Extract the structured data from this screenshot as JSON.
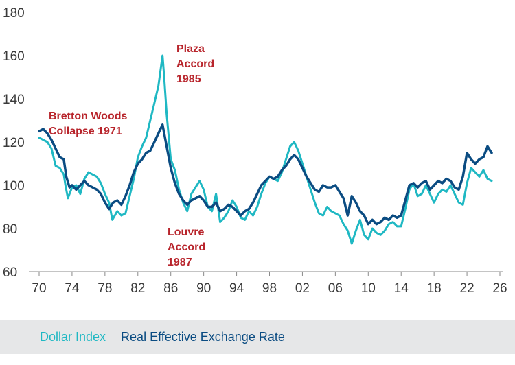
{
  "chart_data": {
    "type": "line",
    "title": "",
    "xlabel": "",
    "ylabel": "",
    "xlim": [
      1970,
      2026
    ],
    "ylim": [
      60,
      180
    ],
    "x_ticks": [
      1970,
      1974,
      1978,
      1982,
      1986,
      1990,
      1994,
      1998,
      2002,
      2006,
      2010,
      2014,
      2018,
      2022,
      2026
    ],
    "x_tick_labels": [
      "70",
      "74",
      "78",
      "82",
      "86",
      "90",
      "94",
      "98",
      "02",
      "06",
      "10",
      "14",
      "18",
      "22",
      "26"
    ],
    "y_ticks": [
      60,
      80,
      100,
      120,
      140,
      160,
      180
    ],
    "y_tick_labels": [
      "60",
      "80",
      "100",
      "120",
      "140",
      "160",
      "180"
    ],
    "grid": false,
    "series": [
      {
        "name": "Dollar Index",
        "color": "#1fb8c3",
        "x": [
          1970.0,
          1971.0,
          1971.5,
          1972.0,
          1972.5,
          1973.0,
          1973.2,
          1973.5,
          1974.0,
          1974.5,
          1975.0,
          1975.5,
          1976.0,
          1976.5,
          1977.0,
          1977.5,
          1978.0,
          1978.5,
          1978.9,
          1979.5,
          1980.0,
          1980.5,
          1981.0,
          1981.5,
          1982.0,
          1982.5,
          1983.0,
          1983.5,
          1984.0,
          1984.5,
          1985.0,
          1985.2,
          1985.5,
          1986.0,
          1986.5,
          1987.0,
          1987.5,
          1988.0,
          1988.5,
          1989.0,
          1989.5,
          1990.0,
          1990.5,
          1991.0,
          1991.5,
          1992.0,
          1992.5,
          1993.0,
          1993.5,
          1994.0,
          1994.5,
          1995.0,
          1995.5,
          1996.0,
          1996.5,
          1997.0,
          1997.5,
          1998.0,
          1998.5,
          1999.0,
          1999.5,
          2000.0,
          2000.5,
          2001.0,
          2001.5,
          2002.0,
          2002.5,
          2003.0,
          2003.5,
          2004.0,
          2004.5,
          2005.0,
          2005.5,
          2006.0,
          2006.5,
          2007.0,
          2007.5,
          2008.0,
          2008.5,
          2009.0,
          2009.5,
          2010.0,
          2010.5,
          2011.0,
          2011.5,
          2012.0,
          2012.5,
          2013.0,
          2013.5,
          2014.0,
          2014.5,
          2015.0,
          2015.5,
          2016.0,
          2016.5,
          2017.0,
          2017.5,
          2018.0,
          2018.5,
          2019.0,
          2019.5,
          2020.0,
          2020.5,
          2021.0,
          2021.5,
          2022.0,
          2022.5,
          2023.0,
          2023.5,
          2024.0,
          2024.5,
          2025.0
        ],
        "values": [
          122,
          120,
          117,
          109,
          108,
          105,
          100,
          94,
          99,
          100,
          96,
          103,
          106,
          105,
          104,
          101,
          96,
          92,
          84,
          88,
          86,
          87,
          95,
          103,
          113,
          118,
          122,
          130,
          138,
          146,
          160,
          150,
          133,
          112,
          107,
          98,
          92,
          88,
          96,
          99,
          102,
          98,
          90,
          88,
          96,
          83,
          85,
          88,
          93,
          90,
          85,
          84,
          88,
          86,
          90,
          96,
          101,
          104,
          103,
          102,
          106,
          112,
          118,
          120,
          116,
          110,
          104,
          98,
          92,
          87,
          86,
          90,
          88,
          87,
          86,
          82,
          79,
          73,
          79,
          84,
          77,
          75,
          80,
          78,
          77,
          79,
          82,
          83,
          81,
          81,
          89,
          98,
          101,
          95,
          96,
          100,
          96,
          92,
          96,
          98,
          97,
          100,
          96,
          92,
          91,
          101,
          108,
          106,
          104,
          107,
          103,
          102
        ]
      },
      {
        "name": "Real Effective Exchange Rate",
        "color": "#0b4c82",
        "x": [
          1970.0,
          1970.5,
          1971.0,
          1971.5,
          1972.0,
          1972.5,
          1973.0,
          1973.3,
          1973.7,
          1974.0,
          1974.5,
          1975.0,
          1975.5,
          1976.0,
          1976.5,
          1977.0,
          1977.5,
          1978.0,
          1978.5,
          1979.0,
          1979.5,
          1980.0,
          1980.5,
          1981.0,
          1981.5,
          1982.0,
          1982.5,
          1983.0,
          1983.5,
          1984.0,
          1984.5,
          1985.0,
          1985.2,
          1985.5,
          1986.0,
          1986.5,
          1987.0,
          1987.5,
          1988.0,
          1988.5,
          1989.0,
          1989.5,
          1990.0,
          1990.5,
          1991.0,
          1991.5,
          1992.0,
          1992.5,
          1993.0,
          1993.5,
          1994.0,
          1994.5,
          1995.0,
          1995.5,
          1996.0,
          1996.5,
          1997.0,
          1997.5,
          1998.0,
          1998.5,
          1999.0,
          1999.5,
          2000.0,
          2000.5,
          2001.0,
          2001.5,
          2002.0,
          2002.5,
          2003.0,
          2003.5,
          2004.0,
          2004.5,
          2005.0,
          2005.5,
          2006.0,
          2006.5,
          2007.0,
          2007.5,
          2008.0,
          2008.5,
          2009.0,
          2009.5,
          2010.0,
          2010.5,
          2011.0,
          2011.5,
          2012.0,
          2012.5,
          2013.0,
          2013.5,
          2014.0,
          2014.5,
          2015.0,
          2015.5,
          2016.0,
          2016.5,
          2017.0,
          2017.5,
          2018.0,
          2018.5,
          2019.0,
          2019.5,
          2020.0,
          2020.5,
          2021.0,
          2021.5,
          2022.0,
          2022.5,
          2023.0,
          2023.5,
          2024.0,
          2024.5,
          2025.0
        ],
        "values": [
          125,
          126,
          124,
          121,
          117,
          113,
          112,
          104,
          99,
          100,
          98,
          100,
          102,
          100,
          99,
          98,
          96,
          92,
          89,
          92,
          93,
          91,
          95,
          100,
          106,
          110,
          112,
          115,
          116,
          120,
          124,
          128,
          124,
          118,
          108,
          101,
          96,
          93,
          91,
          93,
          94,
          95,
          93,
          90,
          90,
          92,
          88,
          89,
          91,
          90,
          88,
          86,
          88,
          89,
          92,
          96,
          100,
          102,
          104,
          103,
          104,
          107,
          109,
          112,
          114,
          112,
          108,
          104,
          101,
          98,
          97,
          100,
          99,
          99,
          100,
          97,
          94,
          86,
          95,
          92,
          88,
          86,
          82,
          84,
          82,
          83,
          85,
          84,
          86,
          85,
          86,
          93,
          100,
          101,
          99,
          101,
          102,
          98,
          100,
          102,
          101,
          103,
          102,
          99,
          98,
          104,
          115,
          112,
          110,
          112,
          113,
          118,
          115
        ]
      }
    ],
    "annotations": [
      {
        "id": "bretton",
        "lines": [
          "Bretton Woods",
          "Collapse 1971"
        ],
        "color": "#b8242b"
      },
      {
        "id": "plaza",
        "lines": [
          "Plaza",
          "Accord",
          "1985"
        ],
        "color": "#b8242b"
      },
      {
        "id": "louvre",
        "lines": [
          "Louvre",
          "Accord",
          "1987"
        ],
        "color": "#b8242b"
      }
    ]
  },
  "legend": [
    {
      "label": "Dollar Index",
      "color": "#1fb8c3"
    },
    {
      "label": "Real Effective Exchange Rate",
      "color": "#0b4c82"
    }
  ]
}
